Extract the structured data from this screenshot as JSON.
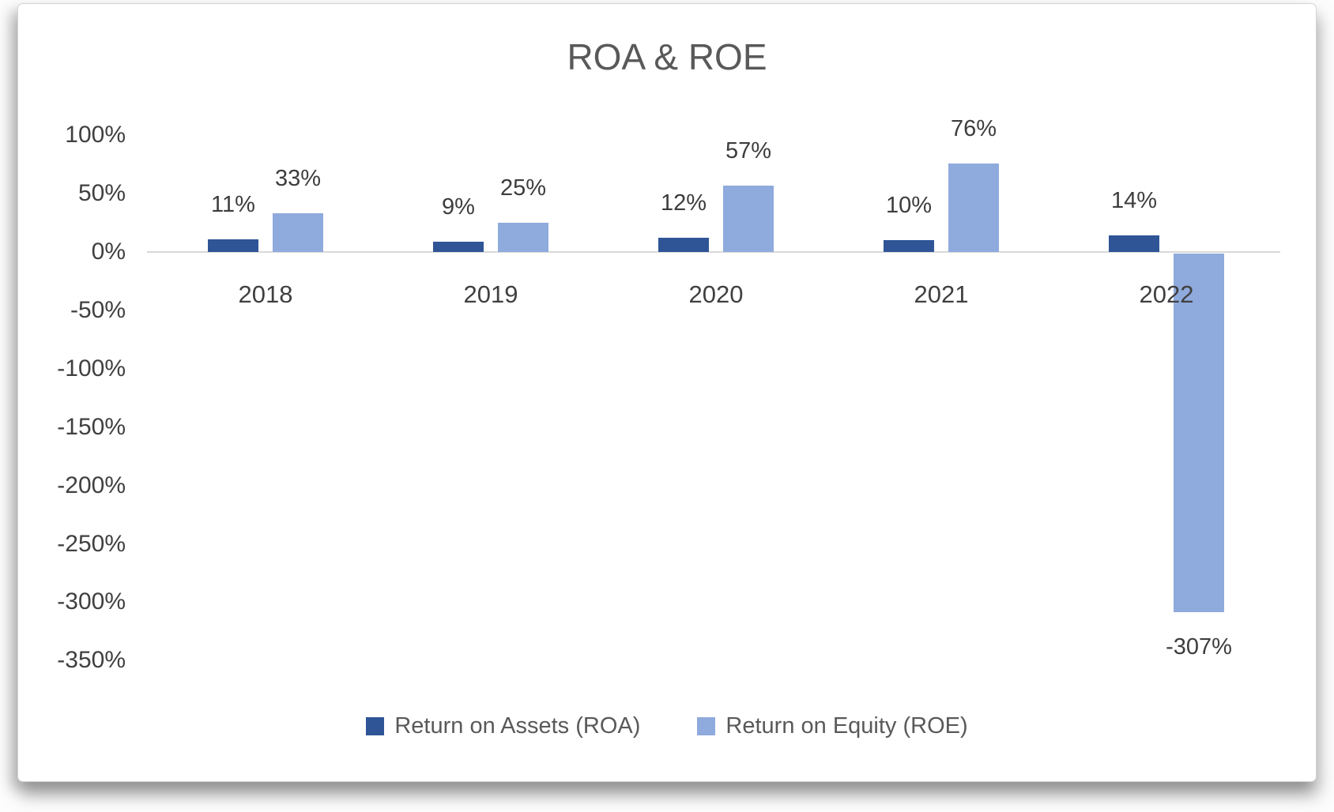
{
  "chart_data": {
    "type": "bar",
    "title": "ROA & ROE",
    "categories": [
      "2018",
      "2019",
      "2020",
      "2021",
      "2022"
    ],
    "series": [
      {
        "name": "Return on Assets (ROA)",
        "color": "#2F5597",
        "values": [
          11,
          9,
          12,
          10,
          14
        ],
        "data_labels": [
          "11%",
          "9%",
          "12%",
          "10%",
          "14%"
        ]
      },
      {
        "name": "Return on Equity (ROE)",
        "color": "#8FAADC",
        "values": [
          33,
          25,
          57,
          76,
          -307
        ],
        "data_labels": [
          "33%",
          "25%",
          "57%",
          "76%",
          "-307%"
        ]
      }
    ],
    "y_axis": {
      "min": -350,
      "max": 100,
      "step": 50,
      "tick_labels": [
        "100%",
        "50%",
        "0%",
        "-50%",
        "-100%",
        "-150%",
        "-200%",
        "-250%",
        "-300%",
        "-350%"
      ],
      "tick_values": [
        100,
        50,
        0,
        -50,
        -100,
        -150,
        -200,
        -250,
        -300,
        -350
      ]
    },
    "legend": {
      "position": "bottom",
      "entries": [
        "Return on Assets (ROA)",
        "Return on Equity (ROE)"
      ]
    },
    "gridlines": "none",
    "axis_line_color": "#D9D9D9",
    "text_color": "#404040",
    "title_color": "#595959"
  }
}
